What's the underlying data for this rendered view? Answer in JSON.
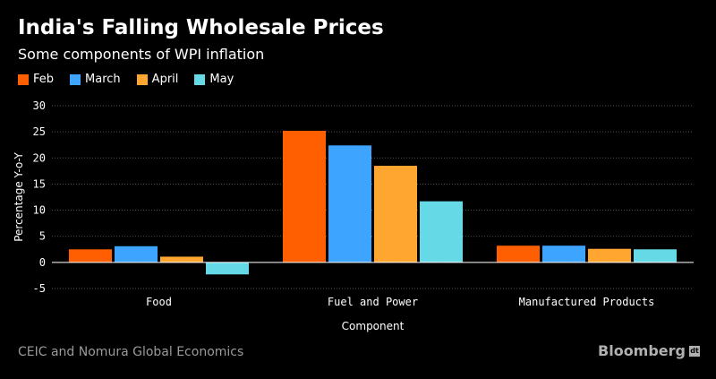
{
  "chart_data": {
    "type": "bar",
    "title": "India's Falling Wholesale Prices",
    "subtitle": "Some components of WPI inflation",
    "xlabel": "Component",
    "ylabel": "Percentage Y-o-Y",
    "ylim": [
      -5,
      30
    ],
    "yticks": [
      30,
      25,
      20,
      15,
      10,
      5,
      0,
      -5
    ],
    "categories": [
      "Food",
      "Fuel and Power",
      "Manufactured Products"
    ],
    "series": [
      {
        "name": "Feb",
        "color": "#ff5f00",
        "values": [
          2.5,
          25.2,
          3.2
        ]
      },
      {
        "name": "March",
        "color": "#3da5ff",
        "values": [
          3.1,
          22.4,
          3.2
        ]
      },
      {
        "name": "April",
        "color": "#ffa630",
        "values": [
          1.1,
          18.5,
          2.6
        ]
      },
      {
        "name": "May",
        "color": "#66d9e6",
        "values": [
          -2.3,
          11.7,
          2.5
        ]
      }
    ]
  },
  "source": "CEIC and Nomura Global Economics",
  "brand": "Bloomberg",
  "brand_icon_text": "dt"
}
